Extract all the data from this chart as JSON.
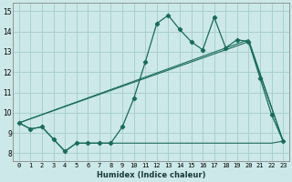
{
  "xlabel": "Humidex (Indice chaleur)",
  "xlim": [
    -0.5,
    23.5
  ],
  "ylim": [
    7.6,
    15.4
  ],
  "yticks": [
    8,
    9,
    10,
    11,
    12,
    13,
    14,
    15
  ],
  "xticks": [
    0,
    1,
    2,
    3,
    4,
    5,
    6,
    7,
    8,
    9,
    10,
    11,
    12,
    13,
    14,
    15,
    16,
    17,
    18,
    19,
    20,
    21,
    22,
    23
  ],
  "bg_color": "#cce8e8",
  "grid_color": "#aacfcf",
  "line_color": "#1a6b5a",
  "line1_x": [
    0,
    1,
    2,
    3,
    4,
    5,
    6,
    7,
    8,
    9,
    10,
    11,
    12,
    13,
    14,
    15,
    16,
    17,
    18,
    19,
    20,
    21,
    22,
    23
  ],
  "line1_y": [
    9.5,
    9.2,
    9.3,
    8.7,
    8.1,
    8.5,
    8.5,
    8.5,
    8.5,
    9.3,
    10.7,
    12.5,
    14.4,
    14.8,
    14.1,
    13.5,
    13.1,
    14.7,
    13.2,
    13.6,
    13.5,
    11.7,
    9.9,
    8.6
  ],
  "line2_x": [
    0,
    1,
    2,
    3,
    4,
    5,
    6,
    7,
    8,
    9,
    10,
    11,
    12,
    13,
    14,
    15,
    16,
    17,
    18,
    19,
    20,
    21,
    22,
    23
  ],
  "line2_y": [
    9.5,
    9.2,
    9.3,
    8.7,
    8.1,
    8.5,
    8.5,
    8.5,
    8.5,
    8.5,
    8.5,
    8.5,
    8.5,
    8.5,
    8.5,
    8.5,
    8.5,
    8.5,
    8.5,
    8.5,
    8.5,
    8.5,
    8.5,
    8.6
  ],
  "line3_x": [
    0,
    20,
    23
  ],
  "line3_y": [
    9.5,
    13.6,
    8.6
  ],
  "line4_x": [
    0,
    20,
    23
  ],
  "line4_y": [
    9.5,
    13.5,
    8.6
  ]
}
